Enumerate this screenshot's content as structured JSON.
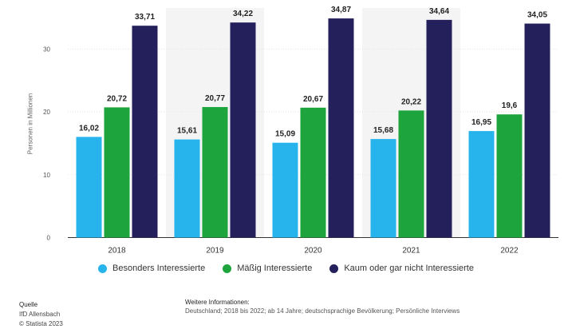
{
  "chart_data": {
    "type": "bar",
    "title": "",
    "xlabel": "",
    "ylabel": "Personen in Millionen",
    "ylim": [
      0,
      35
    ],
    "yticks": [
      "0",
      "10",
      "20",
      "30"
    ],
    "categories": [
      "2018",
      "2019",
      "2020",
      "2021",
      "2022"
    ],
    "series": [
      {
        "name": "Besonders Interessierte",
        "color": "#27b4ec",
        "values": [
          16.02,
          15.61,
          15.09,
          15.68,
          16.95
        ],
        "labels": [
          "16,02",
          "15,61",
          "15,09",
          "15,68",
          "16,95"
        ]
      },
      {
        "name": "Mäßig Interessierte",
        "color": "#1ea43c",
        "values": [
          20.72,
          20.77,
          20.67,
          20.22,
          19.6
        ],
        "labels": [
          "20,72",
          "20,77",
          "20,67",
          "20,22",
          "19,6"
        ]
      },
      {
        "name": "Kaum oder gar nicht Interessierte",
        "color": "#24205c",
        "values": [
          33.71,
          34.22,
          34.87,
          34.64,
          34.05
        ],
        "labels": [
          "33,71",
          "34,22",
          "34,87",
          "34,64",
          "34,05"
        ]
      }
    ],
    "grid": true,
    "legend": "bottom"
  },
  "footer": {
    "quelle_title": "Quelle",
    "quelle_text": "IfD Allensbach",
    "quelle_text2": "© Statista 2023",
    "info_title": "Weitere Informationen:",
    "info_text": "Deutschland; 2018 bis 2022; ab 14 Jahre; deutschsprachige Bevölkerung; Persönliche Interviews"
  }
}
